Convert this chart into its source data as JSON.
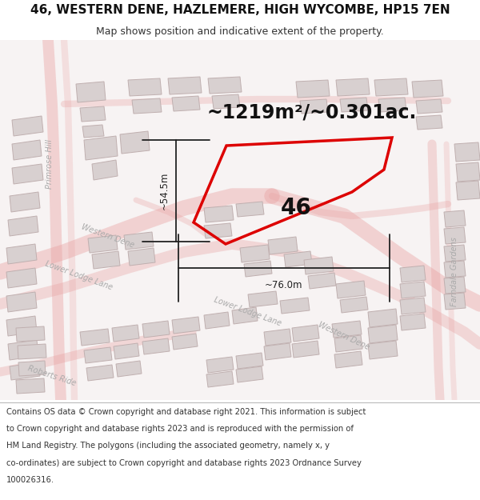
{
  "title_line1": "46, WESTERN DENE, HAZLEMERE, HIGH WYCOMBE, HP15 7EN",
  "title_line2": "Map shows position and indicative extent of the property.",
  "area_text": "~1219m²/~0.301ac.",
  "label_46": "46",
  "dim_v": "~54.5m",
  "dim_h": "~76.0m",
  "footer_lines": [
    "Contains OS data © Crown copyright and database right 2021. This information is subject",
    "to Crown copyright and database rights 2023 and is reproduced with the permission of",
    "HM Land Registry. The polygons (including the associated geometry, namely x, y",
    "co-ordinates) are subject to Crown copyright and database rights 2023 Ordnance Survey",
    "100026316."
  ],
  "bg_color": "#ffffff",
  "map_bg": "#f8f4f4",
  "bldg_fill": "#d8d0d0",
  "bldg_edge": "#c0b0b0",
  "road_color": "#e8a0a0",
  "prop_color": "#dd0000",
  "dim_color": "#222222",
  "road_label_color": "#aaaaaa",
  "header_fs1": 11,
  "header_fs2": 9,
  "area_fs": 17,
  "label_fs": 20,
  "dim_fs": 8.5,
  "footer_fs": 7.2,
  "road_label_fs": 7
}
